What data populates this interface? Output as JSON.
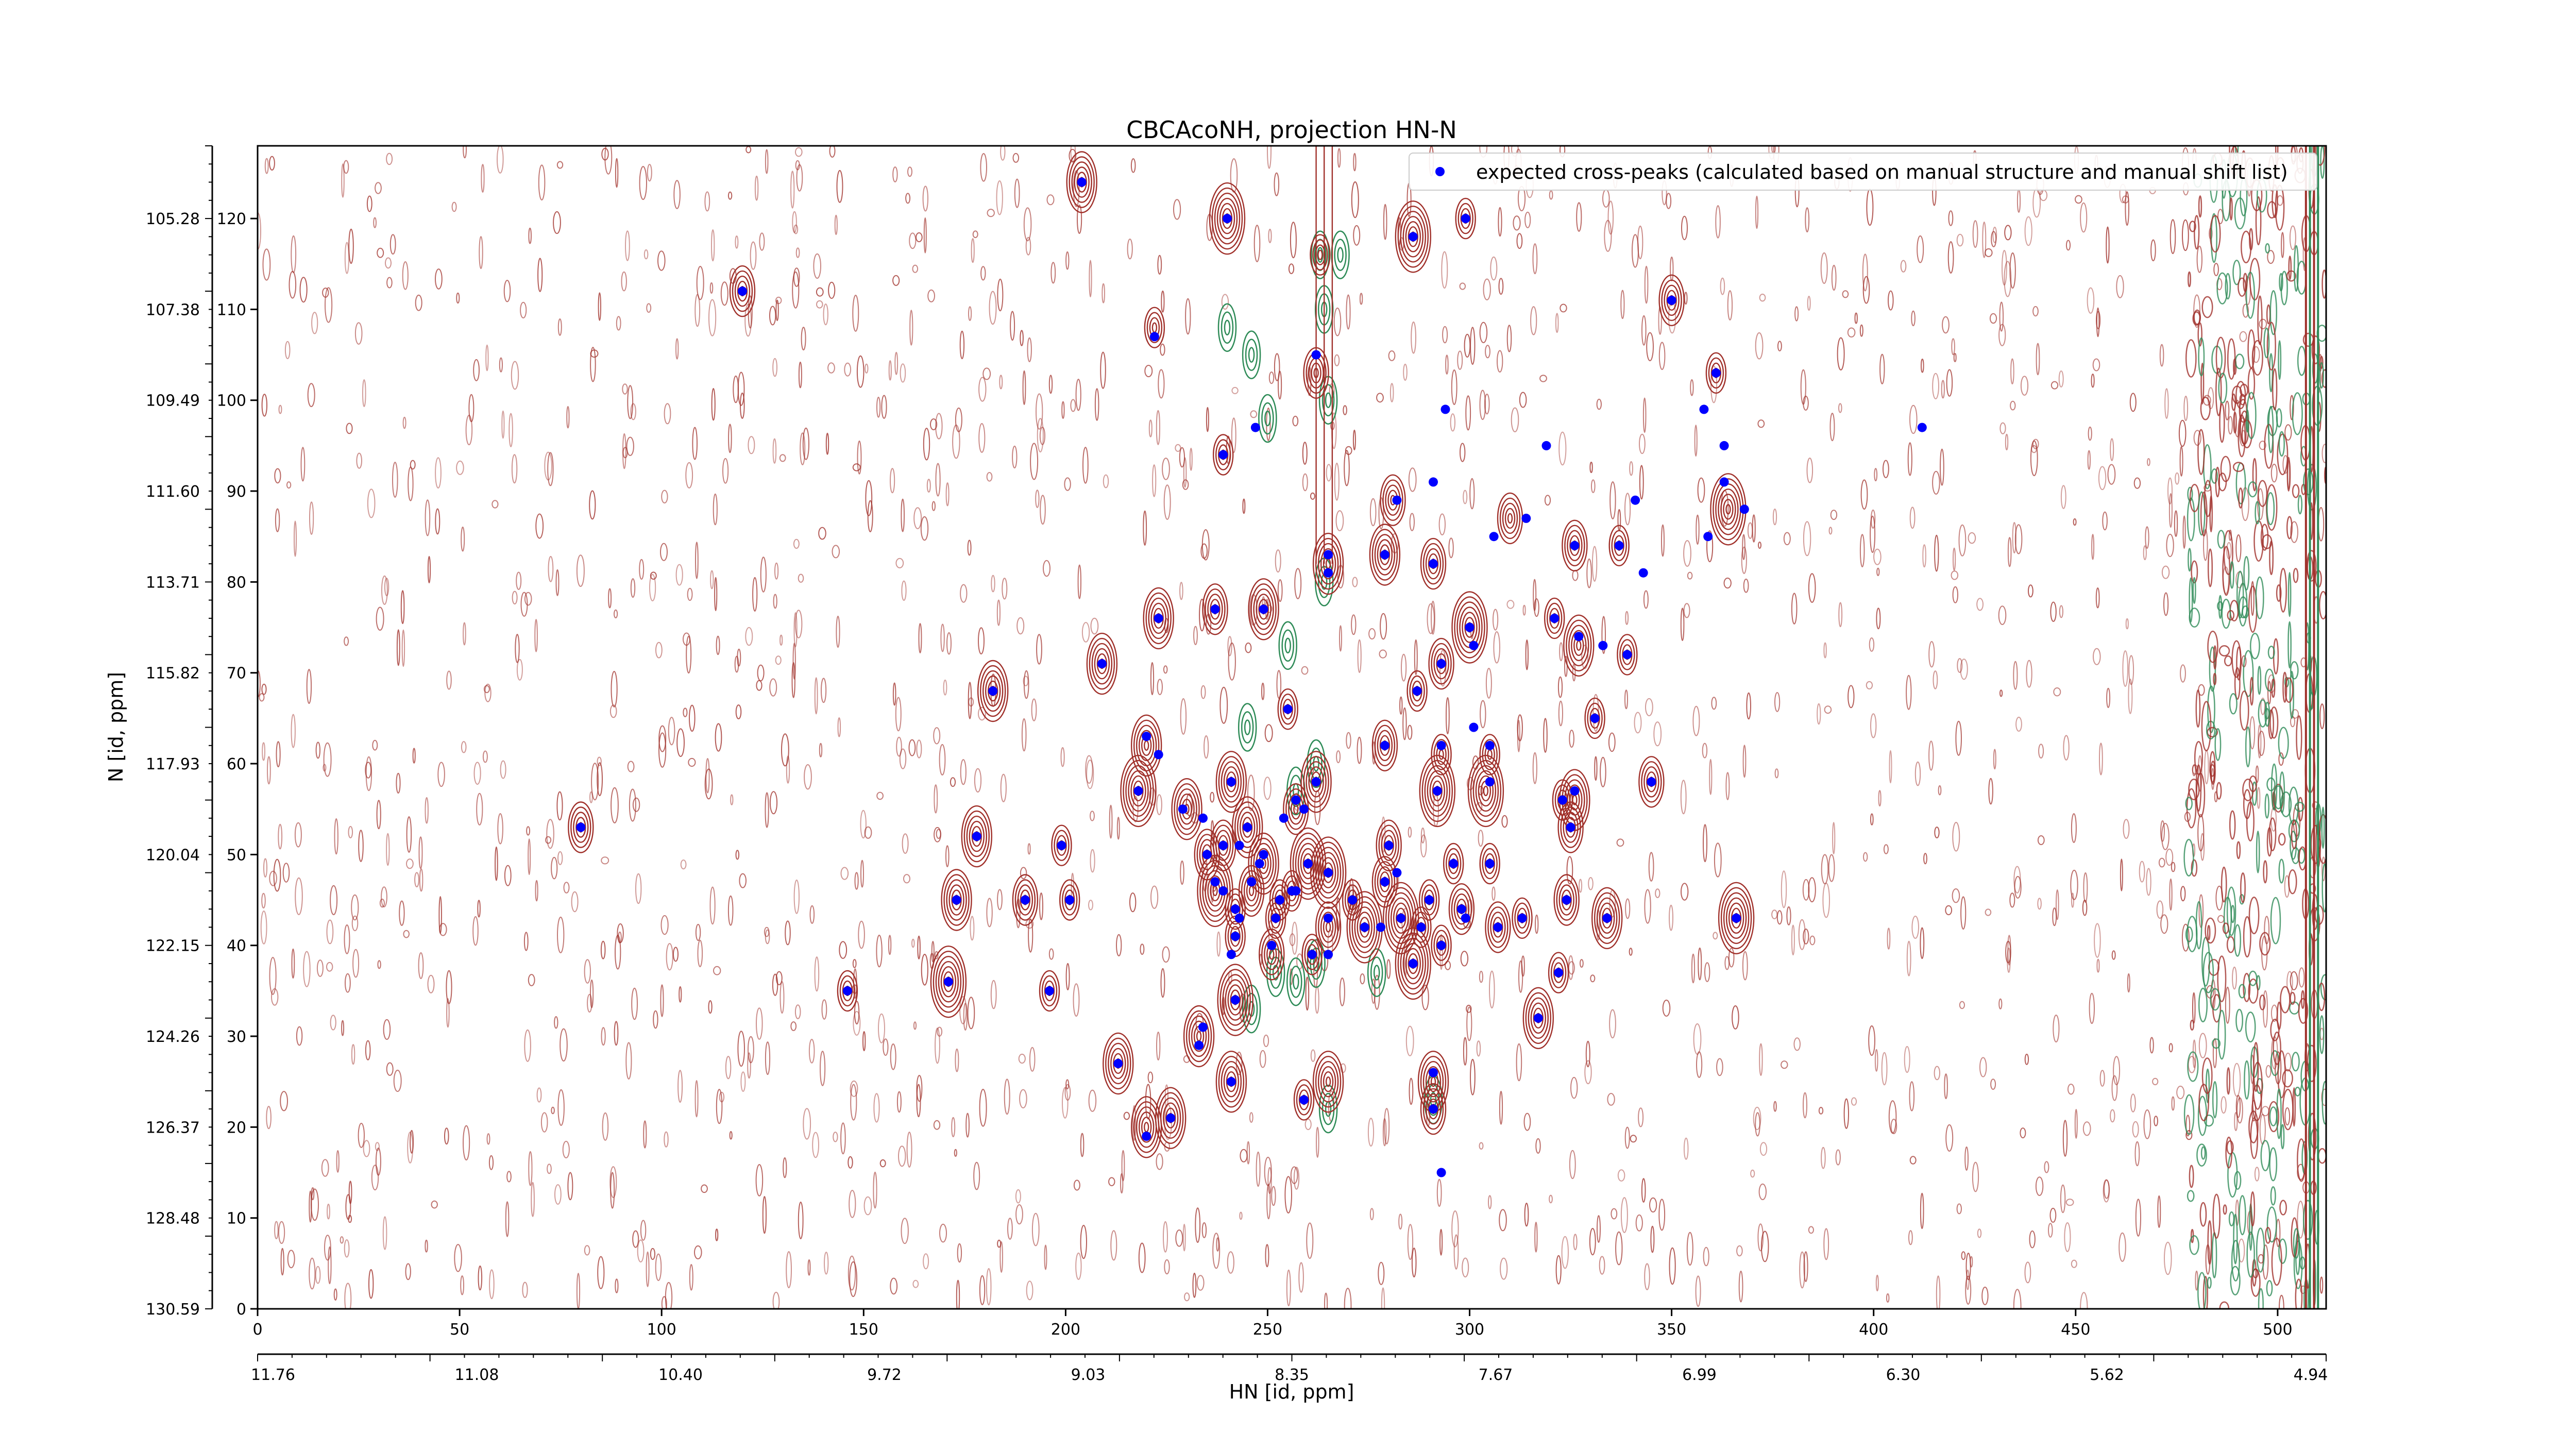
{
  "chart_data": {
    "type": "scatter",
    "title": "CBCAcoNH, projection HN-N",
    "xlabel": "HN [id, ppm]",
    "ylabel": "N [id, ppm]",
    "xlim": [
      0,
      512
    ],
    "ylim": [
      0,
      128
    ],
    "grid": false,
    "legend": {
      "placement": "top-right",
      "label": "expected cross-peaks (calculated based on manual structure and manual shift list)"
    },
    "colors": {
      "marker": "#0000ff",
      "contour_positive": "#a0302a",
      "contour_negative": "#2e8b57"
    },
    "x_index_ticks": [
      "0",
      "50",
      "100",
      "150",
      "200",
      "250",
      "300",
      "350",
      "400",
      "450",
      "500"
    ],
    "x_ppm_ticks": [
      "11.76",
      "11.08",
      "10.40",
      "9.72",
      "9.03",
      "8.35",
      "7.67",
      "6.99",
      "6.30",
      "5.62",
      "4.94"
    ],
    "y_index_ticks": [
      "0",
      "10",
      "20",
      "30",
      "40",
      "50",
      "60",
      "70",
      "80",
      "90",
      "100",
      "110",
      "120"
    ],
    "y_ppm_ticks": [
      "130.59",
      "128.48",
      "126.37",
      "124.26",
      "122.15",
      "120.04",
      "117.93",
      "115.82",
      "113.71",
      "111.60",
      "109.49",
      "107.38",
      "105.28"
    ],
    "points": [
      [
        204,
        124
      ],
      [
        240,
        120
      ],
      [
        299,
        120
      ],
      [
        286,
        118
      ],
      [
        120,
        112
      ],
      [
        350,
        111
      ],
      [
        222,
        107
      ],
      [
        262,
        105
      ],
      [
        361,
        103
      ],
      [
        358,
        99
      ],
      [
        294,
        99
      ],
      [
        247,
        97
      ],
      [
        412,
        97
      ],
      [
        319,
        95
      ],
      [
        363,
        95
      ],
      [
        239,
        94
      ],
      [
        291,
        91
      ],
      [
        363,
        91
      ],
      [
        282,
        89
      ],
      [
        341,
        89
      ],
      [
        368,
        88
      ],
      [
        314,
        87
      ],
      [
        359,
        85
      ],
      [
        306,
        85
      ],
      [
        265,
        83
      ],
      [
        291,
        82
      ],
      [
        326,
        84
      ],
      [
        337,
        84
      ],
      [
        279,
        83
      ],
      [
        343,
        81
      ],
      [
        265,
        81
      ],
      [
        223,
        76
      ],
      [
        237,
        77
      ],
      [
        249,
        77
      ],
      [
        300,
        75
      ],
      [
        321,
        76
      ],
      [
        301,
        73
      ],
      [
        327,
        74
      ],
      [
        333,
        73
      ],
      [
        339,
        72
      ],
      [
        209,
        71
      ],
      [
        293,
        71
      ],
      [
        287,
        68
      ],
      [
        182,
        68
      ],
      [
        255,
        66
      ],
      [
        331,
        65
      ],
      [
        220,
        63
      ],
      [
        301,
        64
      ],
      [
        279,
        62
      ],
      [
        293,
        62
      ],
      [
        305,
        62
      ],
      [
        223,
        61
      ],
      [
        241,
        58
      ],
      [
        262,
        58
      ],
      [
        345,
        58
      ],
      [
        218,
        57
      ],
      [
        305,
        58
      ],
      [
        292,
        57
      ],
      [
        326,
        57
      ],
      [
        323,
        56
      ],
      [
        257,
        56
      ],
      [
        259,
        55
      ],
      [
        254,
        54
      ],
      [
        229,
        55
      ],
      [
        234,
        54
      ],
      [
        245,
        53
      ],
      [
        325,
        53
      ],
      [
        80,
        53
      ],
      [
        178,
        52
      ],
      [
        199,
        51
      ],
      [
        280,
        51
      ],
      [
        239,
        51
      ],
      [
        243,
        51
      ],
      [
        235,
        50
      ],
      [
        249,
        50
      ],
      [
        248,
        49
      ],
      [
        260,
        49
      ],
      [
        296,
        49
      ],
      [
        305,
        49
      ],
      [
        265,
        48
      ],
      [
        282,
        48
      ],
      [
        279,
        47
      ],
      [
        237,
        47
      ],
      [
        246,
        47
      ],
      [
        256,
        46
      ],
      [
        239,
        46
      ],
      [
        257,
        46
      ],
      [
        253,
        45
      ],
      [
        271,
        45
      ],
      [
        290,
        45
      ],
      [
        173,
        45
      ],
      [
        190,
        45
      ],
      [
        201,
        45
      ],
      [
        324,
        45
      ],
      [
        298,
        44
      ],
      [
        242,
        44
      ],
      [
        243,
        43
      ],
      [
        252,
        43
      ],
      [
        265,
        43
      ],
      [
        283,
        43
      ],
      [
        313,
        43
      ],
      [
        334,
        43
      ],
      [
        366,
        43
      ],
      [
        299,
        43
      ],
      [
        274,
        42
      ],
      [
        278,
        42
      ],
      [
        288,
        42
      ],
      [
        307,
        42
      ],
      [
        242,
        41
      ],
      [
        293,
        40
      ],
      [
        251,
        40
      ],
      [
        261,
        39
      ],
      [
        265,
        39
      ],
      [
        241,
        39
      ],
      [
        286,
        38
      ],
      [
        322,
        37
      ],
      [
        171,
        36
      ],
      [
        146,
        35
      ],
      [
        196,
        35
      ],
      [
        242,
        34
      ],
      [
        317,
        32
      ],
      [
        234,
        31
      ],
      [
        233,
        29
      ],
      [
        213,
        27
      ],
      [
        226,
        21
      ],
      [
        291,
        26
      ],
      [
        241,
        25
      ],
      [
        259,
        23
      ],
      [
        220,
        19
      ],
      [
        291,
        22
      ],
      [
        293,
        15
      ]
    ],
    "contour_clusters": [
      [
        204,
        124
      ],
      [
        240,
        120
      ],
      [
        299,
        120
      ],
      [
        286,
        118
      ],
      [
        263,
        116
      ],
      [
        120,
        112
      ],
      [
        350,
        111
      ],
      [
        222,
        108
      ],
      [
        262,
        103
      ],
      [
        361,
        103
      ],
      [
        239,
        94
      ],
      [
        281,
        89
      ],
      [
        310,
        87
      ],
      [
        326,
        84
      ],
      [
        337,
        84
      ],
      [
        364,
        88
      ],
      [
        265,
        82
      ],
      [
        279,
        83
      ],
      [
        291,
        82
      ],
      [
        223,
        76
      ],
      [
        237,
        77
      ],
      [
        249,
        77
      ],
      [
        300,
        75
      ],
      [
        321,
        76
      ],
      [
        327,
        73
      ],
      [
        339,
        72
      ],
      [
        209,
        71
      ],
      [
        293,
        71
      ],
      [
        287,
        68
      ],
      [
        182,
        68
      ],
      [
        255,
        66
      ],
      [
        331,
        65
      ],
      [
        220,
        62
      ],
      [
        279,
        62
      ],
      [
        293,
        61
      ],
      [
        305,
        61
      ],
      [
        241,
        58
      ],
      [
        262,
        58
      ],
      [
        345,
        58
      ],
      [
        218,
        57
      ],
      [
        304,
        57
      ],
      [
        292,
        57
      ],
      [
        326,
        56
      ],
      [
        323,
        56
      ],
      [
        257,
        55
      ],
      [
        230,
        55
      ],
      [
        245,
        53
      ],
      [
        325,
        53
      ],
      [
        80,
        53
      ],
      [
        178,
        52
      ],
      [
        199,
        51
      ],
      [
        280,
        51
      ],
      [
        239,
        51
      ],
      [
        235,
        50
      ],
      [
        249,
        49
      ],
      [
        260,
        49
      ],
      [
        296,
        49
      ],
      [
        305,
        49
      ],
      [
        265,
        48
      ],
      [
        279,
        47
      ],
      [
        237,
        46
      ],
      [
        246,
        46
      ],
      [
        256,
        46
      ],
      [
        253,
        45
      ],
      [
        271,
        45
      ],
      [
        290,
        45
      ],
      [
        173,
        45
      ],
      [
        190,
        45
      ],
      [
        201,
        45
      ],
      [
        324,
        45
      ],
      [
        298,
        44
      ],
      [
        242,
        44
      ],
      [
        252,
        43
      ],
      [
        265,
        42
      ],
      [
        283,
        43
      ],
      [
        313,
        43
      ],
      [
        334,
        43
      ],
      [
        366,
        43
      ],
      [
        274,
        42
      ],
      [
        288,
        42
      ],
      [
        307,
        42
      ],
      [
        242,
        41
      ],
      [
        293,
        40
      ],
      [
        251,
        39
      ],
      [
        261,
        39
      ],
      [
        286,
        38
      ],
      [
        322,
        37
      ],
      [
        171,
        36
      ],
      [
        146,
        35
      ],
      [
        196,
        35
      ],
      [
        242,
        34
      ],
      [
        317,
        32
      ],
      [
        233,
        30
      ],
      [
        213,
        27
      ],
      [
        226,
        21
      ],
      [
        291,
        25
      ],
      [
        241,
        25
      ],
      [
        265,
        25
      ],
      [
        259,
        23
      ],
      [
        220,
        20
      ],
      [
        291,
        22
      ]
    ],
    "green_clusters": [
      [
        263,
        116
      ],
      [
        265,
        100
      ],
      [
        264,
        80
      ],
      [
        262,
        60
      ],
      [
        257,
        57
      ],
      [
        262,
        38
      ],
      [
        252,
        37
      ],
      [
        265,
        22
      ],
      [
        246,
        33
      ],
      [
        257,
        36
      ],
      [
        277,
        37
      ],
      [
        291,
        23
      ],
      [
        246,
        105
      ],
      [
        250,
        98
      ],
      [
        268,
        116
      ],
      [
        264,
        110
      ],
      [
        240,
        108
      ],
      [
        245,
        64
      ],
      [
        255,
        73
      ]
    ]
  }
}
